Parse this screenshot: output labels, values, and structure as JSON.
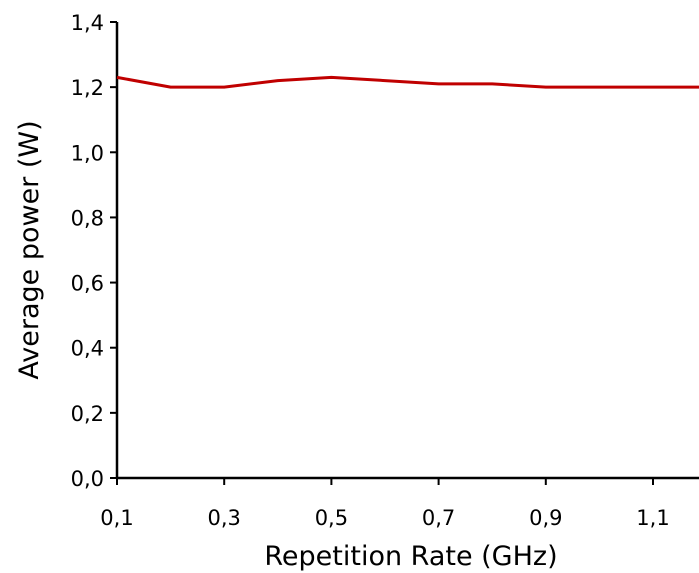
{
  "chart_data": {
    "type": "line",
    "title": "",
    "xlabel": "Repetition Rate (GHz)",
    "ylabel": "Average power (W)",
    "xlim": [
      0.1,
      1.2
    ],
    "ylim": [
      0.0,
      1.4
    ],
    "x_ticks": [
      "0,1",
      "0,3",
      "0,5",
      "0,7",
      "0,9",
      "1,1"
    ],
    "x_tick_values": [
      0.1,
      0.3,
      0.5,
      0.7,
      0.9,
      1.1
    ],
    "y_ticks": [
      "0,0",
      "0,2",
      "0,4",
      "0,6",
      "0,8",
      "1,0",
      "1,2",
      "1,4"
    ],
    "y_tick_values": [
      0.0,
      0.2,
      0.4,
      0.6,
      0.8,
      1.0,
      1.2,
      1.4
    ],
    "grid": false,
    "series": [
      {
        "color": "#c00000",
        "x": [
          0.1,
          0.2,
          0.3,
          0.4,
          0.5,
          0.6,
          0.7,
          0.8,
          0.9,
          1.0,
          1.1,
          1.2
        ],
        "y": [
          1.23,
          1.2,
          1.2,
          1.22,
          1.23,
          1.22,
          1.21,
          1.21,
          1.2,
          1.2,
          1.2,
          1.2
        ]
      }
    ]
  }
}
